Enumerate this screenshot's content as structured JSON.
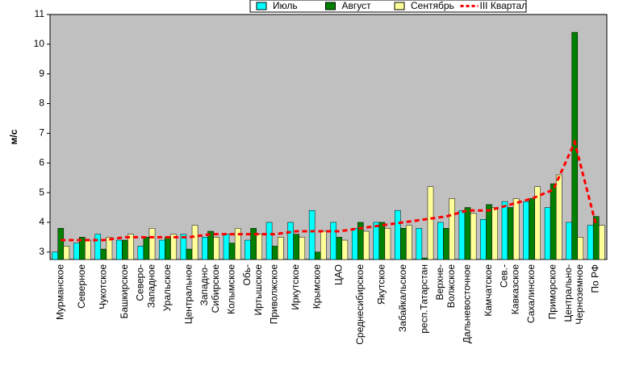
{
  "chart_data": {
    "type": "bar",
    "y_label": "м/с",
    "categories": [
      "Мурманское",
      "Северное",
      "Чукотское",
      "Башкирское",
      "Северо-\nЗападное",
      "Уральское",
      "Центральное",
      "Западно-\nСибирское",
      "Колымское",
      "Обь-\nИртышское",
      "Приволжское",
      "Иркутское",
      "Крымское",
      "ЦАО",
      "Среднесибирское",
      "Якутское",
      "Забайкальское",
      "респ.Татарстан",
      "Верхне-\nВолжское",
      "Дальневосточное",
      "Камчатское",
      "Сев.-\nКавказское",
      "Сахалинское",
      "Приморское",
      "Центрально-\nЧерноземное",
      "По РФ"
    ],
    "series": [
      {
        "name": "Июль",
        "color": "#00ffff",
        "values": [
          3.0,
          3.3,
          3.6,
          3.4,
          3.2,
          3.4,
          3.6,
          3.5,
          3.6,
          3.4,
          4.0,
          4.0,
          4.4,
          4.0,
          3.8,
          4.0,
          4.4,
          3.8,
          4.0,
          4.4,
          4.1,
          4.7,
          4.7,
          4.5,
          4.0,
          3.9
        ]
      },
      {
        "name": "Август",
        "color": "#008000",
        "values": [
          3.8,
          3.5,
          3.1,
          3.4,
          3.5,
          3.5,
          3.1,
          3.7,
          3.3,
          3.8,
          3.2,
          3.6,
          3.0,
          3.5,
          4.0,
          4.0,
          3.8,
          2.8,
          3.8,
          4.5,
          4.6,
          4.5,
          4.8,
          5.3,
          10.4,
          4.2
        ]
      },
      {
        "name": "Сентябрь",
        "color": "#ffff99",
        "values": [
          3.2,
          3.4,
          3.5,
          3.6,
          3.8,
          3.6,
          3.9,
          3.5,
          3.8,
          3.6,
          3.5,
          3.5,
          3.7,
          3.4,
          3.7,
          3.8,
          3.9,
          5.2,
          4.8,
          4.3,
          4.5,
          4.8,
          5.2,
          5.6,
          3.5,
          3.9
        ]
      },
      {
        "name": "III Квартал",
        "type": "line",
        "color": "#ff0000",
        "values": [
          3.4,
          3.4,
          3.4,
          3.5,
          3.5,
          3.5,
          3.5,
          3.6,
          3.6,
          3.6,
          3.6,
          3.7,
          3.7,
          3.7,
          3.8,
          3.9,
          4.0,
          4.1,
          4.2,
          4.4,
          4.4,
          4.6,
          4.8,
          5.1,
          6.7,
          3.9
        ]
      }
    ],
    "ylim": [
      2.75,
      11
    ],
    "yticks": [
      3,
      4,
      5,
      6,
      7,
      8,
      9,
      10,
      11
    ],
    "background": "#c0c0c0"
  }
}
